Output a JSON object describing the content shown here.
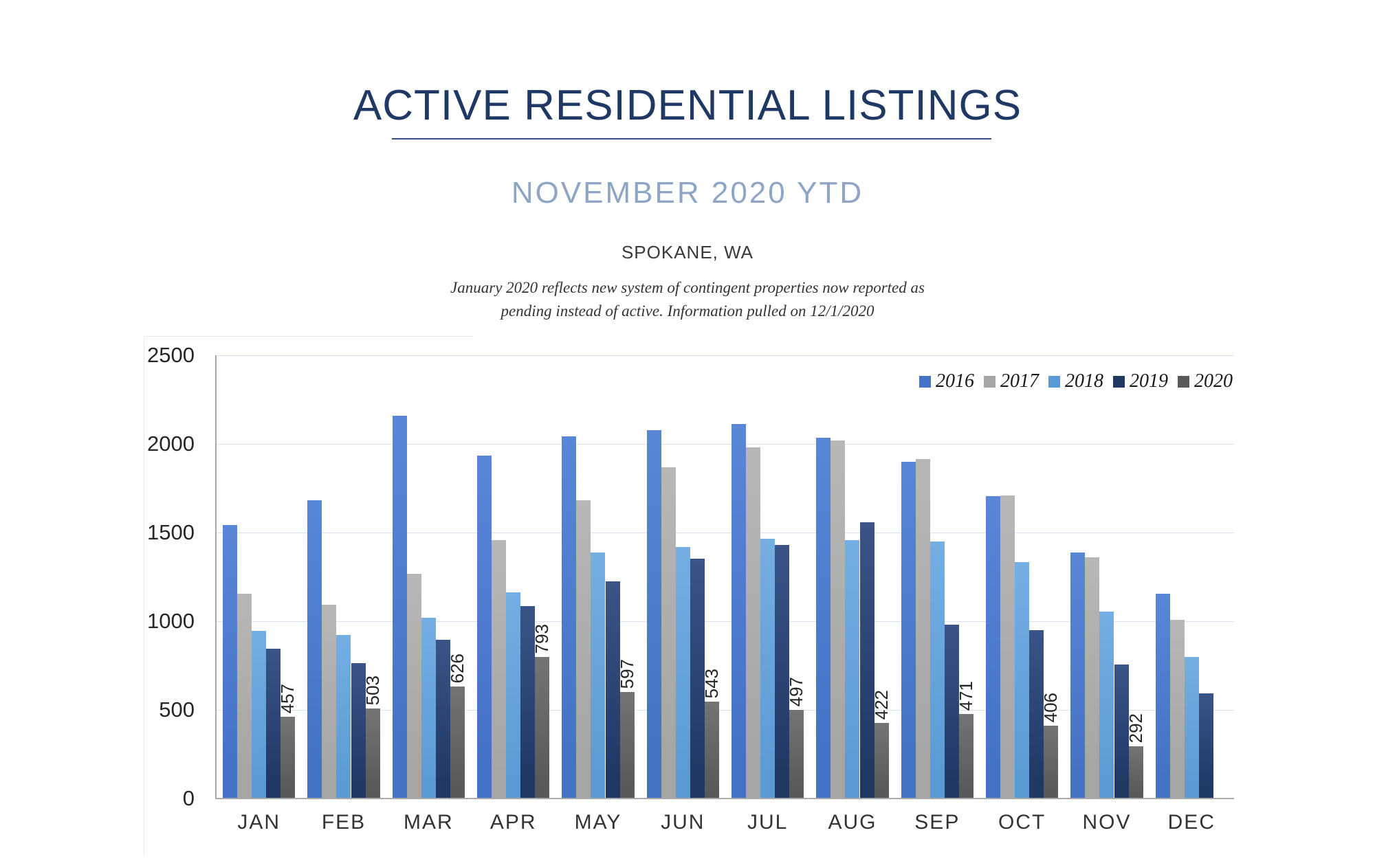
{
  "header": {
    "title": "ACTIVE RESIDENTIAL LISTINGS",
    "subtitle": "NOVEMBER 2020 YTD",
    "location": "SPOKANE, WA",
    "note_line1": "January 2020 reflects new system of contingent properties now reported as",
    "note_line2": "pending instead of active.  Information pulled on 12/1/2020"
  },
  "theme": {
    "title_color": "#1F3864",
    "subtitle_color": "#8FA5C5",
    "gridline_color": "#D9E2F3",
    "axis_color": "#A6A6A6"
  },
  "chart_data": {
    "type": "bar",
    "title": "Active Residential Listings — November 2020 YTD, Spokane WA",
    "categories": [
      "JAN",
      "FEB",
      "MAR",
      "APR",
      "MAY",
      "JUN",
      "JUL",
      "AUG",
      "SEP",
      "OCT",
      "NOV",
      "DEC"
    ],
    "series": [
      {
        "name": "2016",
        "color": "#4472C4",
        "color_light": "#5A86D8",
        "values": [
          1540,
          1680,
          2155,
          1930,
          2040,
          2075,
          2110,
          2030,
          1895,
          1700,
          1385,
          1150
        ]
      },
      {
        "name": "2017",
        "color": "#A5A5A5",
        "color_light": "#B7B7B7",
        "values": [
          1150,
          1090,
          1265,
          1455,
          1680,
          1865,
          1975,
          2015,
          1910,
          1705,
          1355,
          1005
        ]
      },
      {
        "name": "2018",
        "color": "#5B9BD5",
        "color_light": "#74AEE3",
        "values": [
          940,
          920,
          1015,
          1160,
          1385,
          1415,
          1460,
          1455,
          1445,
          1330,
          1050,
          795
        ]
      },
      {
        "name": "2019",
        "color": "#1F3864",
        "color_light": "#3A5488",
        "values": [
          840,
          760,
          890,
          1080,
          1220,
          1350,
          1425,
          1555,
          975,
          945,
          750,
          590
        ]
      },
      {
        "name": "2020",
        "color": "#595959",
        "color_light": "#747474",
        "show_labels": true,
        "values": [
          457,
          503,
          626,
          793,
          597,
          543,
          497,
          422,
          471,
          406,
          292,
          null
        ]
      }
    ],
    "xlabel": "",
    "ylabel": "",
    "ylim": [
      0,
      2500
    ],
    "yticks": [
      0,
      500,
      1000,
      1500,
      2000,
      2500
    ],
    "grid": true,
    "legend_position": "top-right"
  }
}
